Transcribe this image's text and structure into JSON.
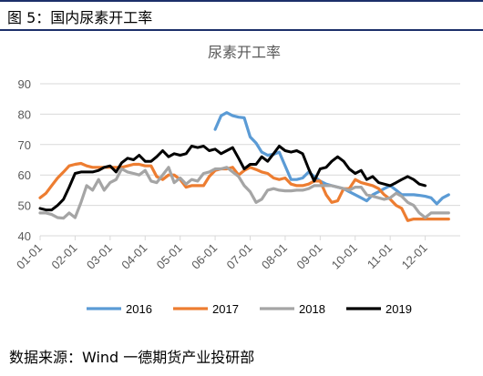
{
  "figure_caption": "图 5：国内尿素开工率",
  "source_text": "数据来源：Wind 一德期货产业投研部",
  "chart_data": {
    "type": "line",
    "title": "尿素开工率",
    "xlabel": "",
    "ylabel": "",
    "ylim": [
      40,
      90
    ],
    "yticks": [
      40,
      50,
      60,
      70,
      80,
      90
    ],
    "categories": [
      "01-01",
      "02-01",
      "03-01",
      "04-01",
      "05-01",
      "06-01",
      "07-01",
      "08-01",
      "09-01",
      "10-01",
      "11-01",
      "12-01"
    ],
    "x_range": [
      1,
      13
    ],
    "grid": "horizontal",
    "legend_position": "bottom",
    "series": [
      {
        "name": "2016",
        "color": "#5b9bd5",
        "x": [
          6.0,
          6.17,
          6.33,
          6.5,
          6.67,
          6.83,
          7.0,
          7.17,
          7.33,
          7.5,
          7.67,
          7.83,
          8.0,
          8.17,
          8.33,
          8.5,
          8.67,
          8.83,
          9.0,
          9.17,
          9.33,
          9.5,
          9.67,
          9.83,
          10.0,
          10.17,
          10.33,
          10.5,
          10.67,
          10.83,
          11.0,
          11.17,
          11.33,
          11.5,
          11.67,
          11.83,
          12.0,
          12.17,
          12.33,
          12.5,
          12.67
        ],
        "y": [
          75,
          79.5,
          80.5,
          79.5,
          79,
          78.8,
          72.5,
          70.5,
          67.5,
          66.5,
          66.8,
          67.5,
          63,
          58.5,
          58.5,
          59,
          61,
          59.5,
          58,
          57,
          56.5,
          56,
          55.5,
          54.5,
          53.5,
          52.5,
          51.5,
          53.5,
          54.5,
          55.5,
          56.5,
          55,
          53.5,
          53.5,
          53.5,
          53.3,
          53,
          52.5,
          50.5,
          52.5,
          53.5
        ]
      },
      {
        "name": "2017",
        "color": "#ed7d31",
        "x": [
          1.0,
          1.17,
          1.33,
          1.5,
          1.67,
          1.83,
          2.0,
          2.17,
          2.33,
          2.5,
          2.67,
          2.83,
          3.0,
          3.17,
          3.33,
          3.5,
          3.67,
          3.83,
          4.0,
          4.17,
          4.33,
          4.5,
          4.67,
          4.83,
          5.0,
          5.17,
          5.33,
          5.5,
          5.67,
          5.83,
          6.0,
          6.17,
          6.33,
          6.5,
          6.67,
          6.83,
          7.0,
          7.17,
          7.33,
          7.5,
          7.67,
          7.83,
          8.0,
          8.17,
          8.33,
          8.5,
          8.67,
          8.83,
          9.0,
          9.17,
          9.33,
          9.5,
          9.67,
          9.83,
          10.0,
          10.17,
          10.33,
          10.5,
          10.67,
          10.83,
          11.0,
          11.17,
          11.33,
          11.5,
          11.67,
          11.83,
          12.0,
          12.17,
          12.33,
          12.5,
          12.67
        ],
        "y": [
          52.5,
          54,
          56.5,
          59,
          61,
          63,
          63.5,
          63.8,
          63,
          62.5,
          62.5,
          62.5,
          62.5,
          62.5,
          62.5,
          63,
          63.5,
          63.5,
          63,
          63,
          59.5,
          58.5,
          60,
          60,
          58.5,
          56,
          56.5,
          56.5,
          56.5,
          59.5,
          61.5,
          62,
          62,
          62.5,
          60,
          61.5,
          62.5,
          61.8,
          61,
          60.5,
          59,
          58.5,
          59,
          57,
          56.5,
          56.5,
          57,
          58,
          58,
          53.5,
          51,
          51.5,
          55.5,
          55.5,
          58.5,
          57.5,
          57,
          56.5,
          55.5,
          53.5,
          52,
          50,
          49,
          45,
          45.5,
          45.5,
          45.5,
          45.5,
          45.5,
          45.5,
          45.5
        ]
      },
      {
        "name": "2018",
        "color": "#a5a5a5",
        "x": [
          1.0,
          1.17,
          1.33,
          1.5,
          1.67,
          1.83,
          2.0,
          2.17,
          2.33,
          2.5,
          2.67,
          2.83,
          3.0,
          3.17,
          3.33,
          3.5,
          3.67,
          3.83,
          4.0,
          4.17,
          4.33,
          4.5,
          4.67,
          4.83,
          5.0,
          5.17,
          5.33,
          5.5,
          5.67,
          5.83,
          6.0,
          6.17,
          6.33,
          6.5,
          6.67,
          6.83,
          7.0,
          7.17,
          7.33,
          7.5,
          7.67,
          7.83,
          8.0,
          8.17,
          8.33,
          8.5,
          8.67,
          8.83,
          9.0,
          9.17,
          9.33,
          9.5,
          9.67,
          9.83,
          10.0,
          10.17,
          10.33,
          10.5,
          10.67,
          10.83,
          11.0,
          11.17,
          11.33,
          11.5,
          11.67,
          11.83,
          12.0,
          12.17,
          12.33,
          12.5,
          12.67
        ],
        "y": [
          47.5,
          47.5,
          47,
          46,
          45.8,
          47.5,
          46,
          51,
          56.5,
          55,
          58.5,
          55,
          57.5,
          58.5,
          62,
          61,
          60.5,
          60,
          61.5,
          58,
          57.5,
          60,
          62.5,
          57.5,
          59,
          57,
          58.5,
          58,
          60.5,
          61,
          62,
          62,
          62.5,
          61,
          59.5,
          56.5,
          54.5,
          51,
          52,
          55,
          55.5,
          55,
          54.8,
          54.8,
          55,
          55,
          55.5,
          56.5,
          56.5,
          56.5,
          56.5,
          56,
          55.5,
          55,
          56,
          56,
          53.5,
          53,
          52.5,
          52,
          52.5,
          54,
          53,
          51,
          50,
          47.5,
          46,
          47.5,
          47.5,
          47.5,
          47.5
        ]
      },
      {
        "name": "2019",
        "color": "#000000",
        "x": [
          1.0,
          1.17,
          1.33,
          1.5,
          1.67,
          1.83,
          2.0,
          2.17,
          2.33,
          2.5,
          2.67,
          2.83,
          3.0,
          3.17,
          3.33,
          3.5,
          3.67,
          3.83,
          4.0,
          4.17,
          4.33,
          4.5,
          4.67,
          4.83,
          5.0,
          5.17,
          5.33,
          5.5,
          5.67,
          5.83,
          6.0,
          6.17,
          6.33,
          6.5,
          6.67,
          6.83,
          7.0,
          7.17,
          7.33,
          7.5,
          7.67,
          7.83,
          8.0,
          8.17,
          8.33,
          8.5,
          8.67,
          8.83,
          9.0,
          9.17,
          9.33,
          9.5,
          9.67,
          9.83,
          10.0,
          10.17,
          10.33,
          10.5,
          10.67,
          10.83,
          11.0,
          11.17,
          11.33,
          11.5,
          11.67,
          11.83,
          12.0
        ],
        "y": [
          49,
          48.5,
          48.5,
          50,
          52,
          56,
          60.5,
          61,
          61,
          61,
          61.5,
          62.5,
          63,
          61,
          64,
          65.5,
          65,
          66.5,
          64.5,
          64.5,
          66,
          68,
          66,
          67,
          66.5,
          67,
          69.5,
          69,
          69.5,
          68,
          68.5,
          67,
          68,
          69,
          65.5,
          62,
          63.5,
          63.5,
          66,
          64.5,
          67,
          69.5,
          68,
          67.5,
          68,
          67,
          62,
          58,
          62,
          62.5,
          64.5,
          66,
          64.5,
          62,
          60.5,
          61.5,
          58.5,
          59.5,
          57.5,
          57,
          56.5,
          57.5,
          58.5,
          59.5,
          58.5,
          57,
          56.5
        ]
      }
    ]
  }
}
